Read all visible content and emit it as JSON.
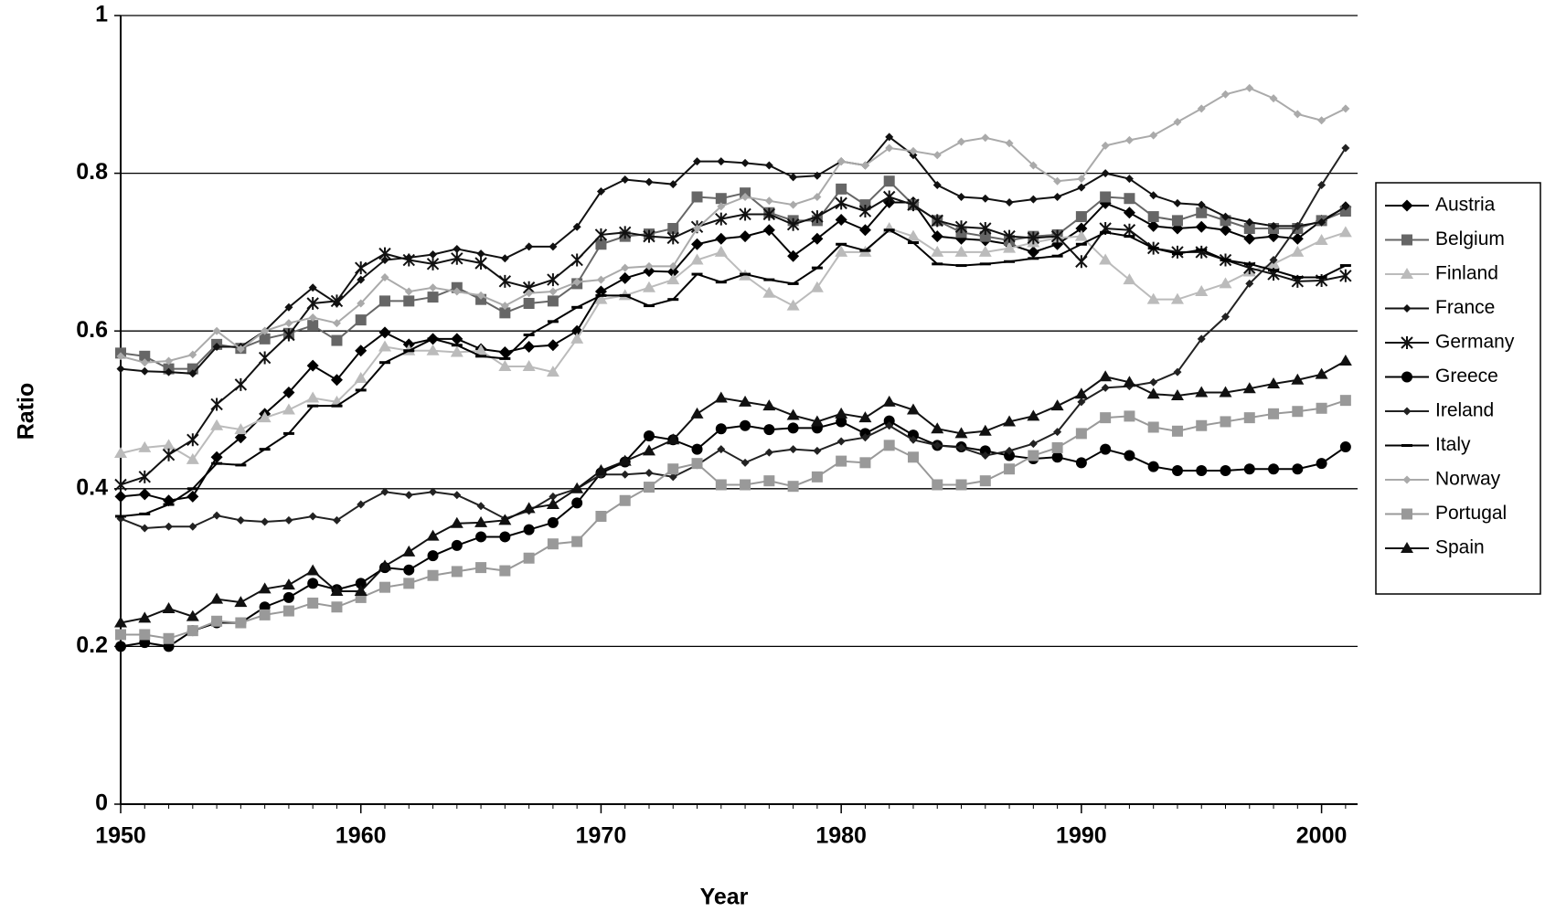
{
  "chart_data": {
    "type": "line",
    "x_label": "Year",
    "y_label": "Ratio",
    "x": [
      1950,
      1951,
      1952,
      1953,
      1954,
      1955,
      1956,
      1957,
      1958,
      1959,
      1960,
      1961,
      1962,
      1963,
      1964,
      1965,
      1966,
      1967,
      1968,
      1969,
      1970,
      1971,
      1972,
      1973,
      1974,
      1975,
      1976,
      1977,
      1978,
      1979,
      1980,
      1981,
      1982,
      1983,
      1984,
      1985,
      1986,
      1987,
      1988,
      1989,
      1990,
      1991,
      1992,
      1993,
      1994,
      1995,
      1996,
      1997,
      1998,
      1999,
      2000,
      2001
    ],
    "xlim": [
      1950,
      2001.5
    ],
    "xticks": [
      1950,
      1960,
      1970,
      1980,
      1990,
      2000
    ],
    "ylim": [
      0,
      1
    ],
    "yticks": [
      0,
      0.2,
      0.4,
      0.6,
      0.8,
      1
    ],
    "grid": true,
    "series": [
      {
        "name": "Austria",
        "color": "#000000",
        "marker": "diamond",
        "values": [
          0.39,
          0.393,
          0.385,
          0.39,
          0.44,
          0.465,
          0.495,
          0.522,
          0.556,
          0.538,
          0.575,
          0.598,
          0.583,
          0.59,
          0.59,
          0.577,
          0.573,
          0.58,
          0.582,
          0.6,
          0.65,
          0.667,
          0.676,
          0.675,
          0.71,
          0.717,
          0.72,
          0.728,
          0.695,
          0.717,
          0.741,
          0.728,
          0.763,
          0.763,
          0.72,
          0.717,
          0.715,
          0.71,
          0.7,
          0.71,
          0.73,
          0.762,
          0.75,
          0.733,
          0.73,
          0.732,
          0.728,
          0.717,
          0.72,
          0.717,
          0.74,
          0.757
        ]
      },
      {
        "name": "Belgium",
        "color": "#666666",
        "marker": "square",
        "values": [
          0.572,
          0.568,
          0.552,
          0.552,
          0.583,
          0.578,
          0.59,
          0.597,
          0.607,
          0.588,
          0.614,
          0.638,
          0.638,
          0.643,
          0.655,
          0.64,
          0.623,
          0.635,
          0.638,
          0.66,
          0.71,
          0.72,
          0.723,
          0.73,
          0.77,
          0.768,
          0.775,
          0.75,
          0.74,
          0.74,
          0.78,
          0.76,
          0.79,
          0.76,
          0.74,
          0.725,
          0.72,
          0.715,
          0.72,
          0.722,
          0.745,
          0.77,
          0.768,
          0.745,
          0.74,
          0.75,
          0.74,
          0.73,
          0.73,
          0.73,
          0.74,
          0.752
        ]
      },
      {
        "name": "Finland",
        "color": "#bbbbbb",
        "marker": "triangle",
        "values": [
          0.445,
          0.452,
          0.455,
          0.437,
          0.48,
          0.475,
          0.49,
          0.5,
          0.515,
          0.51,
          0.54,
          0.58,
          0.575,
          0.575,
          0.573,
          0.575,
          0.555,
          0.555,
          0.548,
          0.59,
          0.64,
          0.645,
          0.655,
          0.665,
          0.69,
          0.7,
          0.67,
          0.648,
          0.632,
          0.655,
          0.7,
          0.7,
          0.73,
          0.72,
          0.7,
          0.7,
          0.7,
          0.705,
          0.712,
          0.718,
          0.72,
          0.69,
          0.665,
          0.64,
          0.64,
          0.65,
          0.66,
          0.675,
          0.685,
          0.7,
          0.715,
          0.725
        ]
      },
      {
        "name": "France",
        "color": "#111111",
        "marker": "small-diamond",
        "values": [
          0.552,
          0.549,
          0.548,
          0.546,
          0.58,
          0.58,
          0.6,
          0.63,
          0.655,
          0.635,
          0.665,
          0.69,
          0.693,
          0.697,
          0.704,
          0.698,
          0.692,
          0.707,
          0.707,
          0.732,
          0.777,
          0.792,
          0.789,
          0.786,
          0.815,
          0.815,
          0.813,
          0.81,
          0.795,
          0.797,
          0.815,
          0.81,
          0.846,
          0.823,
          0.785,
          0.77,
          0.768,
          0.763,
          0.767,
          0.77,
          0.782,
          0.8,
          0.793,
          0.772,
          0.762,
          0.76,
          0.745,
          0.738,
          0.733,
          0.733,
          0.738,
          0.758
        ]
      },
      {
        "name": "Germany",
        "color": "#111111",
        "marker": "star",
        "values": [
          0.405,
          0.415,
          0.443,
          0.462,
          0.507,
          0.532,
          0.566,
          0.595,
          0.635,
          0.638,
          0.68,
          0.698,
          0.69,
          0.685,
          0.692,
          0.686,
          0.663,
          0.655,
          0.665,
          0.69,
          0.722,
          0.725,
          0.72,
          0.718,
          0.732,
          0.742,
          0.748,
          0.748,
          0.735,
          0.745,
          0.762,
          0.752,
          0.77,
          0.76,
          0.74,
          0.732,
          0.73,
          0.72,
          0.718,
          0.72,
          0.688,
          0.73,
          0.728,
          0.705,
          0.7,
          0.7,
          0.69,
          0.68,
          0.672,
          0.663,
          0.664,
          0.67
        ]
      },
      {
        "name": "Greece",
        "color": "#000000",
        "marker": "circle",
        "values": [
          0.2,
          0.205,
          0.2,
          0.22,
          0.23,
          0.23,
          0.25,
          0.262,
          0.28,
          0.272,
          0.28,
          0.3,
          0.297,
          0.315,
          0.328,
          0.339,
          0.339,
          0.348,
          0.357,
          0.382,
          0.42,
          0.434,
          0.467,
          0.462,
          0.45,
          0.476,
          0.48,
          0.475,
          0.477,
          0.477,
          0.485,
          0.47,
          0.486,
          0.468,
          0.455,
          0.453,
          0.448,
          0.442,
          0.438,
          0.44,
          0.433,
          0.45,
          0.442,
          0.428,
          0.423,
          0.423,
          0.423,
          0.425,
          0.425,
          0.425,
          0.432,
          0.453
        ]
      },
      {
        "name": "Ireland",
        "color": "#222222",
        "marker": "small-diamond",
        "values": [
          0.362,
          0.35,
          0.352,
          0.352,
          0.366,
          0.36,
          0.358,
          0.36,
          0.365,
          0.36,
          0.38,
          0.396,
          0.392,
          0.396,
          0.392,
          0.378,
          0.362,
          0.372,
          0.39,
          0.4,
          0.418,
          0.418,
          0.42,
          0.415,
          0.43,
          0.45,
          0.433,
          0.446,
          0.45,
          0.448,
          0.46,
          0.465,
          0.48,
          0.462,
          0.455,
          0.452,
          0.442,
          0.448,
          0.457,
          0.472,
          0.51,
          0.528,
          0.53,
          0.535,
          0.548,
          0.59,
          0.618,
          0.66,
          0.69,
          0.733,
          0.785,
          0.832
        ]
      },
      {
        "name": "Italy",
        "color": "#000000",
        "marker": "dash",
        "values": [
          0.365,
          0.368,
          0.38,
          0.4,
          0.432,
          0.43,
          0.45,
          0.47,
          0.505,
          0.505,
          0.525,
          0.56,
          0.575,
          0.59,
          0.582,
          0.568,
          0.565,
          0.595,
          0.612,
          0.63,
          0.645,
          0.645,
          0.632,
          0.64,
          0.672,
          0.662,
          0.672,
          0.665,
          0.66,
          0.68,
          0.71,
          0.702,
          0.728,
          0.712,
          0.685,
          0.683,
          0.685,
          0.688,
          0.692,
          0.695,
          0.71,
          0.725,
          0.72,
          0.705,
          0.698,
          0.703,
          0.69,
          0.685,
          0.677,
          0.668,
          0.668,
          0.683
        ]
      },
      {
        "name": "Norway",
        "color": "#aaaaaa",
        "marker": "small-diamond",
        "values": [
          0.568,
          0.56,
          0.562,
          0.57,
          0.6,
          0.577,
          0.6,
          0.61,
          0.617,
          0.61,
          0.635,
          0.668,
          0.65,
          0.655,
          0.65,
          0.645,
          0.632,
          0.648,
          0.65,
          0.662,
          0.665,
          0.68,
          0.682,
          0.682,
          0.73,
          0.758,
          0.77,
          0.765,
          0.76,
          0.77,
          0.815,
          0.81,
          0.832,
          0.828,
          0.823,
          0.84,
          0.845,
          0.838,
          0.81,
          0.79,
          0.793,
          0.835,
          0.842,
          0.848,
          0.865,
          0.882,
          0.9,
          0.908,
          0.895,
          0.875,
          0.867,
          0.882
        ]
      },
      {
        "name": "Portugal",
        "color": "#999999",
        "marker": "square",
        "values": [
          0.215,
          0.215,
          0.21,
          0.22,
          0.232,
          0.23,
          0.24,
          0.245,
          0.255,
          0.25,
          0.262,
          0.275,
          0.28,
          0.29,
          0.295,
          0.3,
          0.296,
          0.312,
          0.33,
          0.333,
          0.365,
          0.385,
          0.402,
          0.425,
          0.432,
          0.405,
          0.405,
          0.41,
          0.403,
          0.415,
          0.435,
          0.433,
          0.455,
          0.44,
          0.405,
          0.405,
          0.41,
          0.425,
          0.442,
          0.452,
          0.47,
          0.49,
          0.492,
          0.478,
          0.473,
          0.48,
          0.485,
          0.49,
          0.495,
          0.498,
          0.502,
          0.512
        ]
      },
      {
        "name": "Spain",
        "color": "#111111",
        "marker": "triangle",
        "values": [
          0.23,
          0.236,
          0.248,
          0.238,
          0.26,
          0.256,
          0.273,
          0.278,
          0.296,
          0.27,
          0.27,
          0.302,
          0.32,
          0.34,
          0.356,
          0.357,
          0.36,
          0.375,
          0.38,
          0.4,
          0.423,
          0.435,
          0.448,
          0.462,
          0.495,
          0.515,
          0.51,
          0.505,
          0.493,
          0.485,
          0.495,
          0.49,
          0.51,
          0.5,
          0.476,
          0.47,
          0.473,
          0.485,
          0.492,
          0.505,
          0.52,
          0.542,
          0.535,
          0.52,
          0.518,
          0.522,
          0.522,
          0.527,
          0.533,
          0.538,
          0.545,
          0.562
        ]
      }
    ]
  }
}
